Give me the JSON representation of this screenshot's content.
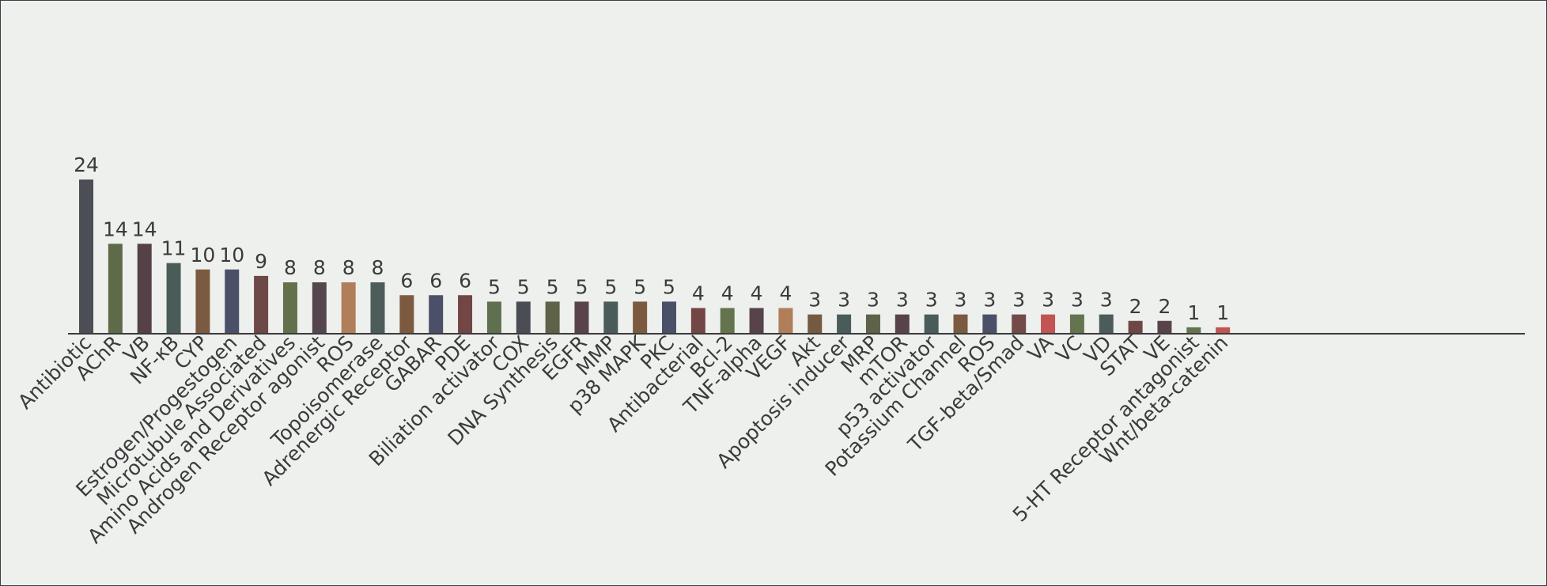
{
  "chart_data": {
    "type": "bar",
    "title": "",
    "xlabel": "",
    "ylabel": "",
    "ylim": [
      0,
      24
    ],
    "grid": false,
    "legend": "none",
    "categories": [
      "Antibiotic",
      "AChR",
      "VB",
      "NF-κB",
      "CYP",
      "Estrogen/Progestogen",
      "Microtubule Associated",
      "Amino Acids and Derivatives",
      "Androgen Receptor agonist",
      "ROS",
      "Topoisomerase",
      "Adrenergic Receptor",
      "GABAR",
      "PDE",
      "Biliation activator",
      "COX",
      "DNA Synthesis",
      "EGFR",
      "MMP",
      "p38 MAPK",
      "PKC",
      "Antibacterial",
      "Bcl-2",
      "TNF-alpha",
      "VEGF",
      "Akt",
      "Apoptosis inducer",
      "MRP",
      "mTOR",
      "p53 activator",
      "Potassium Channel",
      "ROS",
      "TGF-beta/Smad",
      "VA",
      "VC",
      "VD",
      "STAT",
      "VE",
      "5-HT Receptor antagonist",
      "Wnt/beta-catenin"
    ],
    "values": [
      24,
      14,
      14,
      11,
      10,
      10,
      9,
      8,
      8,
      8,
      8,
      6,
      6,
      6,
      5,
      5,
      5,
      5,
      5,
      5,
      5,
      4,
      4,
      4,
      4,
      3,
      3,
      3,
      3,
      3,
      3,
      3,
      3,
      3,
      3,
      3,
      2,
      2,
      1,
      1
    ],
    "value_labels": [
      "24",
      "14",
      "14",
      "11",
      "10",
      "10",
      "9",
      "8",
      "8",
      "8",
      "8",
      "6",
      "6",
      "6",
      "5",
      "5",
      "5",
      "5",
      "5",
      "5",
      "5",
      "4",
      "4",
      "4",
      "4",
      "3",
      "3",
      "3",
      "3",
      "3",
      "3",
      "3",
      "3",
      "3",
      "3",
      "3",
      "2",
      "2",
      "1",
      "1"
    ],
    "bar_colors": [
      "#4b4e55",
      "#5f6b48",
      "#554147",
      "#4a5c58",
      "#7a5a40",
      "#4a5068",
      "#6e4846",
      "#64704c",
      "#55454c",
      "#b07e58",
      "#4c5c5a",
      "#7c5a40",
      "#4b5068",
      "#724644",
      "#5f7050",
      "#4b4d55",
      "#5d6248",
      "#574349",
      "#4a5c5a",
      "#7c5a40",
      "#4a5068",
      "#724644",
      "#64744e",
      "#574349",
      "#b07e58",
      "#735a40",
      "#4a5c5a",
      "#5d6248",
      "#574349",
      "#4a5c5a",
      "#7c5a40",
      "#4a5068",
      "#744a48",
      "#c25454",
      "#64744e",
      "#4b5c5a",
      "#6e4646",
      "#574349",
      "#64744e",
      "#c25454"
    ],
    "axis_color": "#3b3b3b"
  }
}
